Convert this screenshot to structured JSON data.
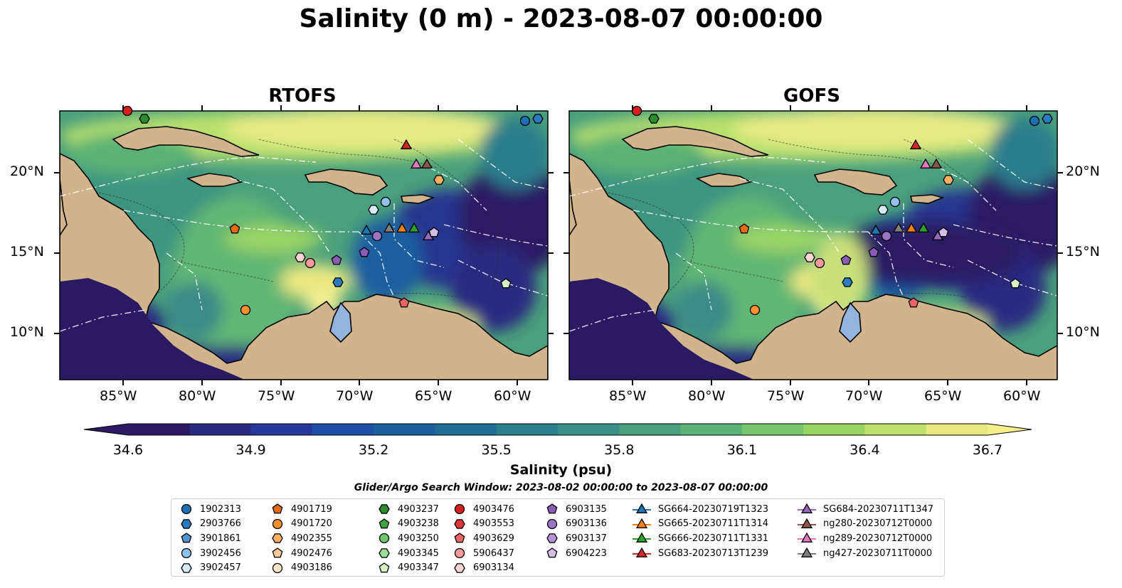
{
  "title": "Salinity (0 m) - 2023-08-07 00:00:00",
  "panels": [
    {
      "title": "RTOFS"
    },
    {
      "title": "GOFS"
    }
  ],
  "lat_labels": [
    "20°N",
    "15°N",
    "10°N"
  ],
  "lon_labels": [
    "85°W",
    "80°W",
    "75°W",
    "70°W",
    "65°W",
    "60°W"
  ],
  "colorbar": {
    "label": "Salinity (psu)",
    "ticks": [
      "34.6",
      "34.9",
      "35.2",
      "35.5",
      "35.8",
      "36.1",
      "36.4",
      "36.7"
    ],
    "colors": [
      "#2a1a64",
      "#2a2a80",
      "#26389a",
      "#1e4fa6",
      "#1b5e9c",
      "#206e92",
      "#2b7e8b",
      "#398e85",
      "#4aa07c",
      "#5cb274",
      "#76c46c",
      "#98d464",
      "#bfe06e",
      "#e8e882"
    ]
  },
  "search_window": "Glider/Argo Search Window: 2023-08-02 00:00:00 to 2023-08-07 00:00:00",
  "legend": {
    "columns": [
      [
        {
          "label": "1902313",
          "marker": "circle",
          "color": "#1f6fb4"
        },
        {
          "label": "2903766",
          "marker": "hexagon",
          "color": "#2b7bc0"
        },
        {
          "label": "3901861",
          "marker": "pentagon",
          "color": "#4f95d4"
        },
        {
          "label": "3902456",
          "marker": "circle",
          "color": "#8ec1ec"
        },
        {
          "label": "3902457",
          "marker": "hexagon",
          "color": "#d6eafa"
        }
      ],
      [
        {
          "label": "4901719",
          "marker": "pentagon",
          "color": "#e86a10"
        },
        {
          "label": "4901720",
          "marker": "circle",
          "color": "#f78f2c"
        },
        {
          "label": "4902355",
          "marker": "hexagon",
          "color": "#f9ae62"
        },
        {
          "label": "4902476",
          "marker": "pentagon",
          "color": "#fbc996"
        },
        {
          "label": "4903186",
          "marker": "circle",
          "color": "#fde4c8"
        }
      ],
      [
        {
          "label": "4903237",
          "marker": "hexagon",
          "color": "#2a8c2a"
        },
        {
          "label": "4903238",
          "marker": "pentagon",
          "color": "#3ea53e"
        },
        {
          "label": "4903250",
          "marker": "circle",
          "color": "#6cc46c"
        },
        {
          "label": "4903345",
          "marker": "hexagon",
          "color": "#9cdc96"
        },
        {
          "label": "4903347",
          "marker": "pentagon",
          "color": "#d4f4c8"
        }
      ],
      [
        {
          "label": "4903476",
          "marker": "circle",
          "color": "#d62020"
        },
        {
          "label": "4903553",
          "marker": "hexagon",
          "color": "#e03838"
        },
        {
          "label": "4903629",
          "marker": "pentagon",
          "color": "#ec6464"
        },
        {
          "label": "5906437",
          "marker": "circle",
          "color": "#f59a9a"
        },
        {
          "label": "6903134",
          "marker": "hexagon",
          "color": "#fcd4d4"
        }
      ],
      [
        {
          "label": "6903135",
          "marker": "pentagon",
          "color": "#8a5cb8"
        },
        {
          "label": "6903136",
          "marker": "circle",
          "color": "#9c74c4"
        },
        {
          "label": "6903137",
          "marker": "hexagon",
          "color": "#b494d4"
        },
        {
          "label": "6904223",
          "marker": "pentagon",
          "color": "#d4bfe8"
        }
      ],
      [
        {
          "label": "SG664-20230719T1323",
          "marker": "triangle-line",
          "color": "#1f77b4"
        },
        {
          "label": "SG665-20230711T1314",
          "marker": "triangle-line",
          "color": "#ff7f0e"
        },
        {
          "label": "SG666-20230711T1331",
          "marker": "triangle-line",
          "color": "#2ca02c"
        },
        {
          "label": "SG683-20230713T1239",
          "marker": "triangle-line",
          "color": "#d62728"
        }
      ],
      [
        {
          "label": "SG684-20230711T1347",
          "marker": "triangle-line",
          "color": "#9467bd"
        },
        {
          "label": "ng280-20230712T0000",
          "marker": "triangle-line",
          "color": "#8c564b"
        },
        {
          "label": "ng289-20230712T0000",
          "marker": "triangle-line",
          "color": "#e377c2"
        },
        {
          "label": "ng427-20230711T0000",
          "marker": "triangle-line",
          "color": "#7f7f7f"
        }
      ]
    ]
  }
}
